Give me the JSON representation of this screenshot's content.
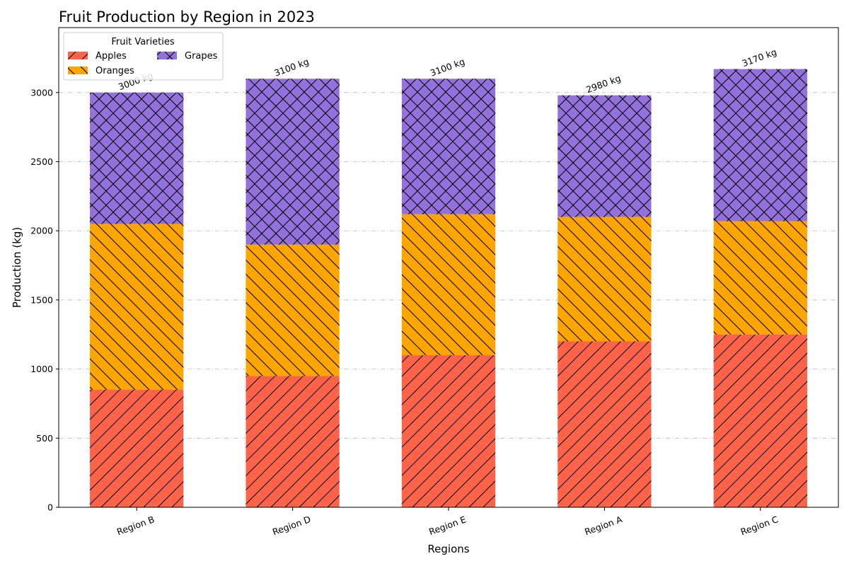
{
  "chart_data": {
    "type": "bar",
    "stacked": true,
    "title": "Fruit Production by Region in 2023",
    "xlabel": "Regions",
    "ylabel": "Production (kg)",
    "categories": [
      "Region B",
      "Region D",
      "Region E",
      "Region A",
      "Region C"
    ],
    "series": [
      {
        "name": "Apples",
        "values": [
          850,
          950,
          1100,
          1200,
          1250
        ],
        "color": "#ff6347",
        "hatch": "forward-diagonal"
      },
      {
        "name": "Oranges",
        "values": [
          1200,
          950,
          1020,
          900,
          820
        ],
        "color": "#ffa500",
        "hatch": "back-diagonal"
      },
      {
        "name": "Grapes",
        "values": [
          950,
          1200,
          980,
          880,
          1100
        ],
        "color": "#9370db",
        "hatch": "crosshatch"
      }
    ],
    "totals": [
      "3000 kg",
      "3100 kg",
      "3100 kg",
      "2980 kg",
      "3170 kg"
    ],
    "ylim": [
      0,
      3470
    ],
    "yticks": [
      0,
      500,
      1000,
      1500,
      2000,
      2500,
      3000
    ],
    "grid": "y-dashdot",
    "legend": {
      "title": "Fruit Varieties",
      "placement": "top-left",
      "columns": 2
    }
  }
}
